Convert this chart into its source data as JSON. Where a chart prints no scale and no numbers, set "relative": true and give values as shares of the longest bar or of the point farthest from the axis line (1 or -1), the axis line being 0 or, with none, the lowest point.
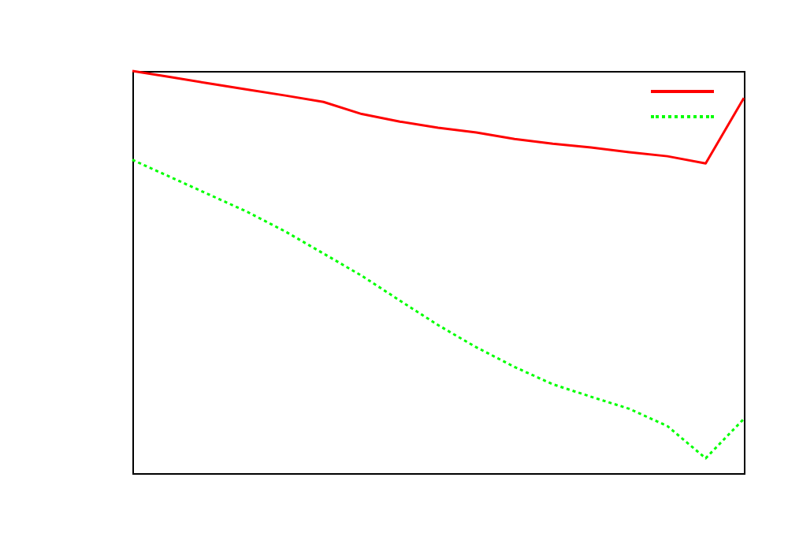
{
  "chart_data": {
    "type": "line",
    "relative": true,
    "categories": [
      null,
      null,
      null,
      null,
      null,
      null,
      null,
      null,
      null,
      null,
      null,
      null,
      null,
      null,
      null,
      null,
      null
    ],
    "series": [
      {
        "color": "#ff0000",
        "line_style": "solid",
        "values": [
          1,
          0.985,
          0.969,
          0.954,
          0.939,
          0.923,
          0.893,
          0.874,
          0.859,
          0.847,
          0.831,
          0.819,
          0.81,
          0.798,
          0.788,
          0.77,
          0.933
        ]
      },
      {
        "color": "#00ff00",
        "line_style": "dotted",
        "values": [
          0.779,
          0.736,
          0.693,
          0.65,
          0.601,
          0.546,
          0.491,
          0.429,
          0.368,
          0.313,
          0.264,
          0.221,
          0.19,
          0.16,
          0.117,
          0.037,
          0.135
        ]
      }
    ]
  }
}
